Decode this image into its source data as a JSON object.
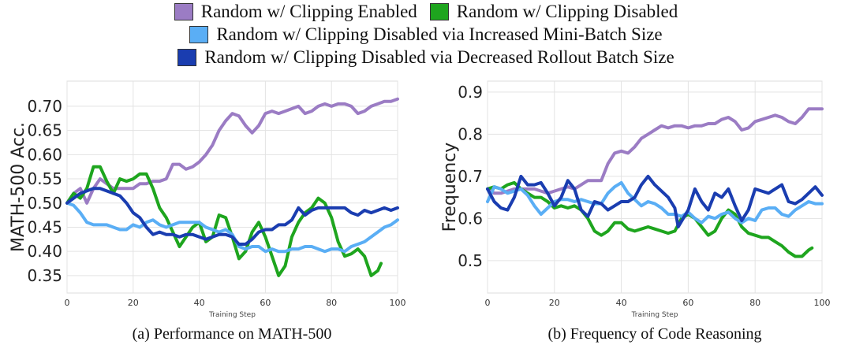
{
  "legend": [
    {
      "label": "Random w/ Clipping Enabled",
      "color": "#9b7cc4"
    },
    {
      "label": "Random w/ Clipping Disabled",
      "color": "#1ea51e"
    },
    {
      "label": "Random w/ Clipping Disabled via Increased Mini-Batch Size",
      "color": "#5aaef5"
    },
    {
      "label": "Random w/ Clipping Disabled via Decreased Rollout Batch Size",
      "color": "#1a3db0"
    }
  ],
  "chart_data": [
    {
      "type": "line",
      "caption": "(a) Performance on MATH-500",
      "xlabel": "Training Step",
      "ylabel": "MATH-500 Acc.",
      "xlim": [
        0,
        100
      ],
      "ylim": [
        0.314,
        0.752
      ],
      "xticks": [
        "0",
        "20",
        "40",
        "60",
        "80",
        "100"
      ],
      "yticks": [
        "0.35",
        "0.40",
        "0.45",
        "0.50",
        "0.55",
        "0.60",
        "0.65",
        "0.70"
      ],
      "grid": true,
      "series": [
        {
          "name": "Random w/ Clipping Enabled",
          "color": "#9b7cc4",
          "x": [
            0,
            2,
            4,
            6,
            8,
            10,
            12,
            14,
            16,
            18,
            20,
            22,
            24,
            26,
            28,
            30,
            32,
            34,
            36,
            38,
            40,
            42,
            44,
            46,
            48,
            50,
            52,
            54,
            56,
            58,
            60,
            62,
            64,
            66,
            68,
            70,
            72,
            74,
            76,
            78,
            80,
            82,
            84,
            86,
            88,
            90,
            92,
            94,
            96,
            98,
            100
          ],
          "y": [
            0.5,
            0.52,
            0.53,
            0.5,
            0.53,
            0.55,
            0.54,
            0.53,
            0.53,
            0.53,
            0.53,
            0.54,
            0.54,
            0.545,
            0.545,
            0.55,
            0.58,
            0.58,
            0.57,
            0.575,
            0.585,
            0.6,
            0.62,
            0.65,
            0.67,
            0.685,
            0.68,
            0.66,
            0.645,
            0.66,
            0.685,
            0.69,
            0.685,
            0.69,
            0.695,
            0.7,
            0.685,
            0.69,
            0.7,
            0.705,
            0.7,
            0.705,
            0.705,
            0.7,
            0.685,
            0.69,
            0.7,
            0.705,
            0.71,
            0.71,
            0.715
          ]
        },
        {
          "name": "Random w/ Clipping Disabled",
          "color": "#1ea51e",
          "x": [
            0,
            2,
            4,
            6,
            8,
            10,
            12,
            14,
            16,
            18,
            20,
            22,
            24,
            26,
            28,
            30,
            32,
            34,
            36,
            38,
            40,
            42,
            44,
            46,
            48,
            50,
            52,
            54,
            56,
            58,
            60,
            62,
            64,
            66,
            68,
            70,
            72,
            74,
            76,
            78,
            80,
            82,
            84,
            86,
            88,
            90,
            92,
            94,
            95
          ],
          "y": [
            0.5,
            0.52,
            0.51,
            0.53,
            0.575,
            0.575,
            0.545,
            0.52,
            0.55,
            0.545,
            0.55,
            0.56,
            0.56,
            0.53,
            0.49,
            0.47,
            0.44,
            0.41,
            0.43,
            0.45,
            0.46,
            0.42,
            0.43,
            0.475,
            0.47,
            0.43,
            0.385,
            0.4,
            0.44,
            0.46,
            0.43,
            0.39,
            0.35,
            0.37,
            0.43,
            0.46,
            0.48,
            0.49,
            0.51,
            0.5,
            0.47,
            0.42,
            0.39,
            0.395,
            0.405,
            0.39,
            0.35,
            0.36,
            0.375
          ]
        },
        {
          "name": "Random w/ Clipping Disabled via Increased Mini-Batch Size",
          "color": "#5aaef5",
          "x": [
            0,
            2,
            4,
            6,
            8,
            10,
            12,
            14,
            16,
            18,
            20,
            22,
            24,
            26,
            28,
            30,
            32,
            34,
            36,
            38,
            40,
            42,
            44,
            46,
            48,
            50,
            52,
            54,
            56,
            58,
            60,
            62,
            64,
            66,
            68,
            70,
            72,
            74,
            76,
            78,
            80,
            82,
            84,
            86,
            88,
            90,
            92,
            94,
            96,
            98,
            100
          ],
          "y": [
            0.5,
            0.495,
            0.48,
            0.46,
            0.455,
            0.455,
            0.455,
            0.45,
            0.445,
            0.445,
            0.455,
            0.45,
            0.46,
            0.465,
            0.455,
            0.45,
            0.455,
            0.46,
            0.46,
            0.46,
            0.46,
            0.45,
            0.445,
            0.44,
            0.445,
            0.435,
            0.41,
            0.405,
            0.41,
            0.41,
            0.4,
            0.405,
            0.4,
            0.4,
            0.405,
            0.405,
            0.41,
            0.41,
            0.405,
            0.4,
            0.405,
            0.405,
            0.4,
            0.41,
            0.415,
            0.42,
            0.43,
            0.44,
            0.45,
            0.455,
            0.465
          ]
        },
        {
          "name": "Random w/ Clipping Disabled via Decreased Rollout Batch Size",
          "color": "#1a3db0",
          "x": [
            0,
            2,
            4,
            6,
            8,
            10,
            12,
            14,
            16,
            18,
            20,
            22,
            24,
            26,
            28,
            30,
            32,
            34,
            36,
            38,
            40,
            42,
            44,
            46,
            48,
            50,
            52,
            54,
            56,
            58,
            60,
            62,
            64,
            66,
            68,
            70,
            72,
            74,
            76,
            78,
            80,
            82,
            84,
            86,
            88,
            90,
            92,
            94,
            96,
            98,
            100
          ],
          "y": [
            0.5,
            0.51,
            0.52,
            0.525,
            0.53,
            0.53,
            0.525,
            0.52,
            0.515,
            0.5,
            0.48,
            0.47,
            0.45,
            0.435,
            0.44,
            0.435,
            0.435,
            0.43,
            0.435,
            0.435,
            0.43,
            0.425,
            0.43,
            0.435,
            0.435,
            0.43,
            0.415,
            0.415,
            0.425,
            0.44,
            0.445,
            0.445,
            0.455,
            0.455,
            0.465,
            0.49,
            0.475,
            0.485,
            0.49,
            0.49,
            0.49,
            0.49,
            0.49,
            0.48,
            0.475,
            0.485,
            0.48,
            0.485,
            0.49,
            0.485,
            0.49
          ]
        }
      ]
    },
    {
      "type": "line",
      "caption": "(b) Frequency of Code Reasoning",
      "xlabel": "Training Step",
      "ylabel": "Frequency",
      "xlim": [
        0,
        100
      ],
      "ylim": [
        0.423,
        0.926
      ],
      "xticks": [
        "0",
        "20",
        "40",
        "60",
        "80",
        "100"
      ],
      "yticks": [
        "0.5",
        "0.6",
        "0.7",
        "0.8",
        "0.9"
      ],
      "grid": true,
      "series": [
        {
          "name": "Random w/ Clipping Enabled",
          "color": "#9b7cc4",
          "x": [
            0,
            2,
            4,
            6,
            8,
            10,
            12,
            14,
            16,
            18,
            20,
            22,
            24,
            26,
            28,
            30,
            32,
            34,
            36,
            38,
            40,
            42,
            44,
            46,
            48,
            50,
            52,
            54,
            56,
            58,
            60,
            62,
            64,
            66,
            68,
            70,
            72,
            74,
            76,
            78,
            80,
            82,
            84,
            86,
            88,
            90,
            92,
            94,
            96,
            98,
            100
          ],
          "y": [
            0.67,
            0.66,
            0.66,
            0.665,
            0.67,
            0.67,
            0.67,
            0.67,
            0.665,
            0.66,
            0.665,
            0.67,
            0.675,
            0.67,
            0.68,
            0.69,
            0.69,
            0.69,
            0.73,
            0.755,
            0.76,
            0.755,
            0.77,
            0.79,
            0.8,
            0.81,
            0.82,
            0.815,
            0.82,
            0.82,
            0.815,
            0.82,
            0.82,
            0.825,
            0.825,
            0.835,
            0.84,
            0.83,
            0.81,
            0.815,
            0.83,
            0.835,
            0.84,
            0.845,
            0.84,
            0.83,
            0.825,
            0.84,
            0.86,
            0.86,
            0.86
          ]
        },
        {
          "name": "Random w/ Clipping Disabled",
          "color": "#1ea51e",
          "x": [
            0,
            2,
            4,
            6,
            8,
            10,
            12,
            14,
            16,
            18,
            20,
            22,
            24,
            26,
            28,
            30,
            32,
            34,
            36,
            38,
            40,
            42,
            44,
            46,
            48,
            50,
            52,
            54,
            56,
            58,
            60,
            62,
            64,
            66,
            68,
            70,
            72,
            74,
            76,
            78,
            80,
            82,
            84,
            86,
            88,
            90,
            92,
            94,
            96,
            97
          ],
          "y": [
            0.67,
            0.675,
            0.67,
            0.68,
            0.685,
            0.67,
            0.66,
            0.65,
            0.65,
            0.64,
            0.625,
            0.63,
            0.625,
            0.63,
            0.62,
            0.6,
            0.57,
            0.56,
            0.57,
            0.59,
            0.59,
            0.575,
            0.57,
            0.575,
            0.58,
            0.575,
            0.57,
            0.565,
            0.57,
            0.6,
            0.61,
            0.6,
            0.58,
            0.56,
            0.57,
            0.6,
            0.62,
            0.61,
            0.58,
            0.565,
            0.56,
            0.555,
            0.555,
            0.545,
            0.535,
            0.52,
            0.51,
            0.51,
            0.525,
            0.53
          ]
        },
        {
          "name": "Random w/ Clipping Disabled via Increased Mini-Batch Size",
          "color": "#5aaef5",
          "x": [
            0,
            2,
            4,
            6,
            8,
            10,
            12,
            14,
            16,
            18,
            20,
            22,
            24,
            26,
            28,
            30,
            32,
            34,
            36,
            38,
            40,
            42,
            44,
            46,
            48,
            50,
            52,
            54,
            56,
            58,
            60,
            62,
            64,
            66,
            68,
            70,
            72,
            74,
            76,
            78,
            80,
            82,
            84,
            86,
            88,
            90,
            92,
            94,
            96,
            98,
            100
          ],
          "y": [
            0.64,
            0.675,
            0.67,
            0.66,
            0.665,
            0.67,
            0.655,
            0.63,
            0.61,
            0.625,
            0.64,
            0.645,
            0.645,
            0.64,
            0.645,
            0.64,
            0.635,
            0.635,
            0.66,
            0.675,
            0.685,
            0.66,
            0.645,
            0.63,
            0.64,
            0.635,
            0.625,
            0.61,
            0.61,
            0.605,
            0.615,
            0.6,
            0.59,
            0.605,
            0.6,
            0.61,
            0.615,
            0.6,
            0.59,
            0.6,
            0.595,
            0.62,
            0.625,
            0.625,
            0.61,
            0.605,
            0.62,
            0.63,
            0.64,
            0.635,
            0.635
          ]
        },
        {
          "name": "Random w/ Clipping Disabled via Decreased Rollout Batch Size",
          "color": "#1a3db0",
          "x": [
            0,
            2,
            4,
            6,
            8,
            10,
            12,
            14,
            16,
            18,
            20,
            22,
            24,
            26,
            28,
            30,
            32,
            34,
            36,
            38,
            40,
            42,
            44,
            46,
            48,
            50,
            52,
            54,
            56,
            57,
            60,
            62,
            64,
            66,
            68,
            70,
            72,
            74,
            76,
            78,
            80,
            82,
            84,
            86,
            88,
            90,
            92,
            94,
            96,
            98,
            100
          ],
          "y": [
            0.67,
            0.64,
            0.625,
            0.62,
            0.65,
            0.7,
            0.68,
            0.68,
            0.685,
            0.66,
            0.63,
            0.65,
            0.69,
            0.67,
            0.62,
            0.605,
            0.64,
            0.635,
            0.62,
            0.63,
            0.64,
            0.64,
            0.65,
            0.68,
            0.7,
            0.68,
            0.665,
            0.65,
            0.625,
            0.58,
            0.62,
            0.67,
            0.64,
            0.62,
            0.66,
            0.65,
            0.67,
            0.63,
            0.595,
            0.62,
            0.67,
            0.665,
            0.66,
            0.67,
            0.68,
            0.64,
            0.635,
            0.645,
            0.66,
            0.675,
            0.655
          ]
        }
      ]
    }
  ]
}
